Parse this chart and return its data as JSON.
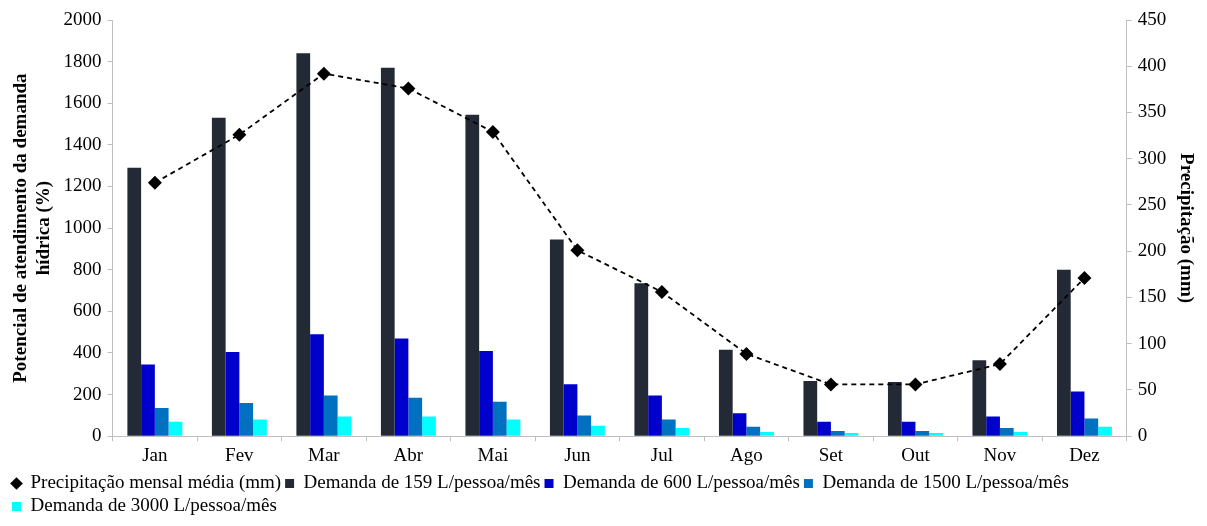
{
  "chart_data": {
    "type": "bar",
    "ylabel": "Potencial de atendimento da demanda hídrica (%)",
    "y2label": "Precipitação (mm)",
    "categories": [
      "Jan",
      "Fev",
      "Mar",
      "Abr",
      "Mai",
      "Jun",
      "Jul",
      "Ago",
      "Set",
      "Out",
      "Nov",
      "Dez"
    ],
    "series": [
      {
        "name": "Demanda de 159 L/pessoa/mês",
        "color": "#242a35",
        "values": [
          1290,
          1530,
          1840,
          1770,
          1545,
          945,
          735,
          415,
          265,
          260,
          365,
          800
        ]
      },
      {
        "name": "Demanda de 600 L/pessoa/mês",
        "color": "#0000cc",
        "values": [
          345,
          405,
          490,
          470,
          410,
          250,
          195,
          110,
          70,
          70,
          95,
          215
        ]
      },
      {
        "name": "Demanda de 1500 L/pessoa/mês",
        "color": "#0070c0",
        "values": [
          135,
          160,
          195,
          185,
          165,
          100,
          80,
          45,
          25,
          25,
          40,
          85
        ]
      },
      {
        "name": "Demanda de 3000 L/pessoa/mês",
        "color": "#00ffff",
        "values": [
          70,
          80,
          95,
          95,
          80,
          50,
          40,
          20,
          15,
          15,
          20,
          45
        ]
      },
      {
        "name": "Precipitação mensal média (mm)",
        "type": "line",
        "axis": "y2",
        "color": "#000000",
        "marker": "diamond",
        "line_style": "dashed",
        "values": [
          274,
          326,
          392,
          376,
          329,
          201,
          156,
          89,
          56,
          56,
          78,
          171
        ]
      }
    ],
    "ylim": [
      0,
      2000
    ],
    "yticks": [
      0,
      200,
      400,
      600,
      800,
      1000,
      1200,
      1400,
      1600,
      1800,
      2000
    ],
    "y2lim": [
      0,
      450
    ],
    "y2ticks": [
      0,
      50,
      100,
      150,
      200,
      250,
      300,
      350,
      400,
      450
    ],
    "grid": false,
    "legend": "bottom"
  }
}
